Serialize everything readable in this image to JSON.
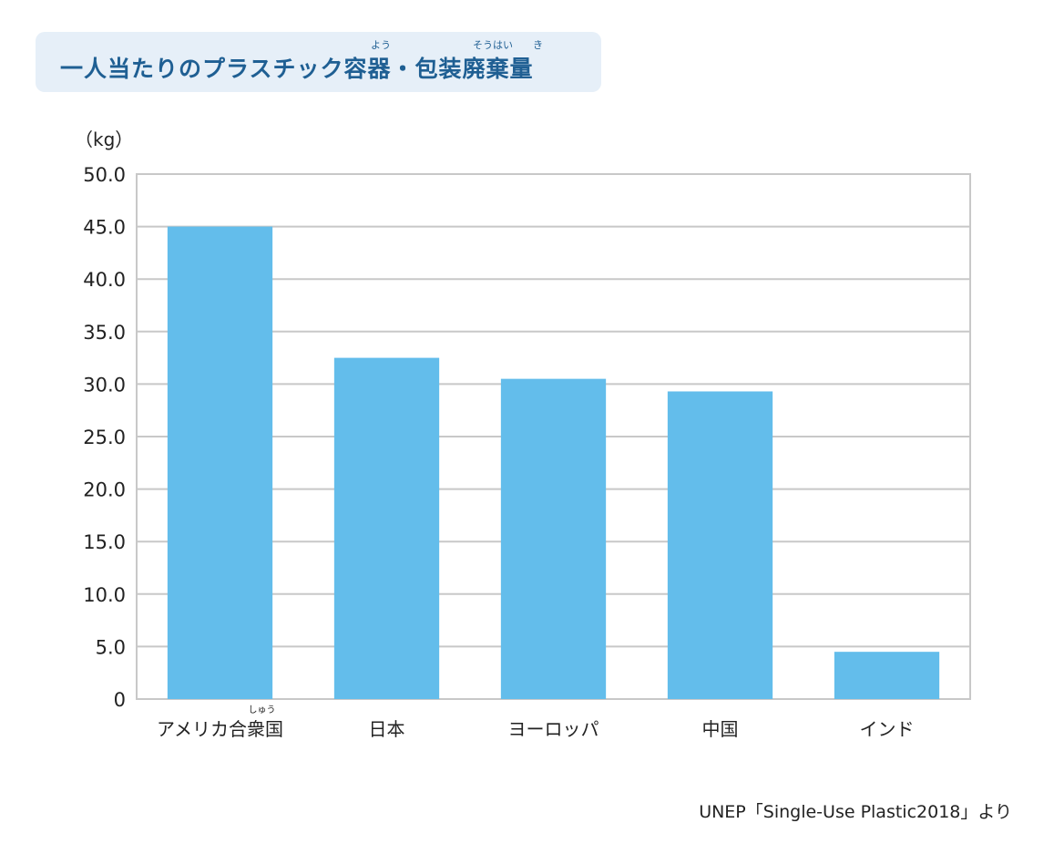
{
  "title": "一人当たりのプラスチック容器・包装廃棄量",
  "title_ruby": [
    {
      "text": "よう"
    },
    {
      "text": "そうはい"
    },
    {
      "text": "き"
    }
  ],
  "unit_label": "（kg）",
  "source": "UNEP「Single-Use Plastic2018」より",
  "colors": {
    "bar": "#63bdeb",
    "title_bg": "#e6eff8",
    "title_text": "#1f5f93",
    "grid": "#c8c8c8"
  },
  "chart_data": {
    "type": "bar",
    "title": "一人当たりのプラスチック容器・包装廃棄量",
    "ylabel": "（kg）",
    "xlabel": "",
    "categories": [
      "アメリカ合衆国",
      "日本",
      "ヨーロッパ",
      "中国",
      "インド"
    ],
    "category_ruby": [
      "しゅう",
      "",
      "",
      "",
      ""
    ],
    "values": [
      45.0,
      32.5,
      30.5,
      29.3,
      4.5
    ],
    "ylim": [
      0,
      50
    ],
    "yticks": [
      "0",
      "5.0",
      "10.0",
      "15.0",
      "20.0",
      "25.0",
      "30.0",
      "35.0",
      "40.0",
      "45.0",
      "50.0"
    ],
    "grid": true,
    "legend": "none"
  }
}
